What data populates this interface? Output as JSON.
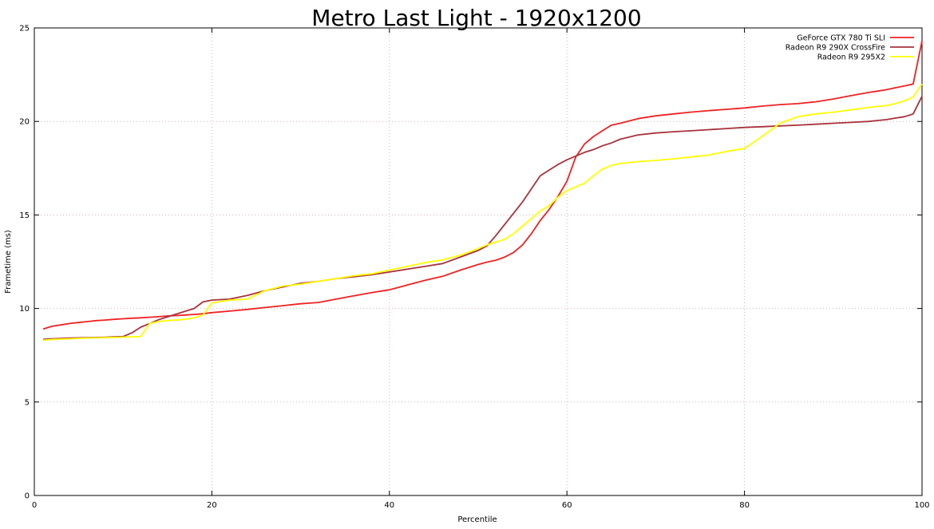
{
  "chart_data": {
    "type": "line",
    "title": "Metro Last Light - 1920x1200",
    "xlabel": "Percentile",
    "ylabel": "Frametime (ms)",
    "xlim": [
      0,
      100
    ],
    "ylim": [
      0,
      25
    ],
    "xticks": [
      0,
      20,
      40,
      60,
      80,
      100
    ],
    "yticks": [
      0,
      5,
      10,
      15,
      20,
      25
    ],
    "grid": true,
    "legend_position": "top-right",
    "x": [
      1,
      2,
      3,
      4,
      5,
      6,
      7,
      8,
      9,
      10,
      11,
      12,
      13,
      14,
      15,
      16,
      17,
      18,
      19,
      20,
      22,
      24,
      26,
      28,
      30,
      32,
      34,
      36,
      38,
      40,
      42,
      44,
      46,
      48,
      50,
      51,
      52,
      53,
      54,
      55,
      56,
      57,
      58,
      59,
      60,
      61,
      62,
      63,
      64,
      65,
      66,
      68,
      70,
      72,
      74,
      76,
      78,
      80,
      82,
      84,
      86,
      88,
      90,
      92,
      94,
      95,
      96,
      97,
      98,
      99,
      100
    ],
    "series": [
      {
        "name": "GeForce GTX 780 Ti SLI",
        "color": "#ee2222",
        "values": [
          8.9,
          9.05,
          9.12,
          9.2,
          9.25,
          9.3,
          9.35,
          9.38,
          9.42,
          9.45,
          9.48,
          9.5,
          9.53,
          9.56,
          9.6,
          9.62,
          9.65,
          9.68,
          9.72,
          9.78,
          9.86,
          9.95,
          10.05,
          10.15,
          10.25,
          10.32,
          10.5,
          10.68,
          10.85,
          11.0,
          11.25,
          11.5,
          11.72,
          12.05,
          12.35,
          12.48,
          12.58,
          12.75,
          13.0,
          13.4,
          14.0,
          14.7,
          15.3,
          16.0,
          16.8,
          18.1,
          18.8,
          19.2,
          19.5,
          19.8,
          19.9,
          20.15,
          20.3,
          20.4,
          20.5,
          20.58,
          20.65,
          20.72,
          20.82,
          20.9,
          20.95,
          21.05,
          21.2,
          21.38,
          21.55,
          21.62,
          21.7,
          21.8,
          21.9,
          22.0,
          24.3
        ]
      },
      {
        "name": "Radeon R9 290X CrossFire",
        "color": "#a8323c",
        "values": [
          8.35,
          8.38,
          8.4,
          8.42,
          8.43,
          8.44,
          8.45,
          8.46,
          8.48,
          8.5,
          8.7,
          9.0,
          9.2,
          9.4,
          9.55,
          9.7,
          9.85,
          10.0,
          10.35,
          10.45,
          10.5,
          10.7,
          10.95,
          11.15,
          11.35,
          11.45,
          11.6,
          11.7,
          11.8,
          11.95,
          12.1,
          12.25,
          12.4,
          12.75,
          13.1,
          13.35,
          13.9,
          14.5,
          15.1,
          15.7,
          16.4,
          17.1,
          17.4,
          17.7,
          17.95,
          18.15,
          18.35,
          18.5,
          18.7,
          18.85,
          19.05,
          19.28,
          19.38,
          19.45,
          19.5,
          19.56,
          19.62,
          19.68,
          19.72,
          19.76,
          19.8,
          19.85,
          19.9,
          19.95,
          20.0,
          20.05,
          20.1,
          20.18,
          20.25,
          20.4,
          21.35
        ]
      },
      {
        "name": "Radeon R9 295X2",
        "color": "#ffff00",
        "values": [
          8.3,
          8.34,
          8.36,
          8.38,
          8.4,
          8.42,
          8.43,
          8.44,
          8.45,
          8.47,
          8.48,
          8.5,
          9.2,
          9.3,
          9.35,
          9.38,
          9.42,
          9.5,
          9.65,
          10.3,
          10.45,
          10.5,
          10.95,
          11.2,
          11.3,
          11.45,
          11.6,
          11.75,
          11.85,
          12.05,
          12.25,
          12.45,
          12.6,
          12.85,
          13.2,
          13.4,
          13.55,
          13.7,
          14.0,
          14.4,
          14.8,
          15.2,
          15.5,
          15.95,
          16.3,
          16.5,
          16.7,
          17.1,
          17.45,
          17.65,
          17.75,
          17.85,
          17.92,
          18.0,
          18.1,
          18.2,
          18.4,
          18.55,
          19.2,
          19.9,
          20.25,
          20.4,
          20.5,
          20.62,
          20.75,
          20.8,
          20.85,
          20.95,
          21.1,
          21.3,
          22.0
        ]
      }
    ]
  }
}
